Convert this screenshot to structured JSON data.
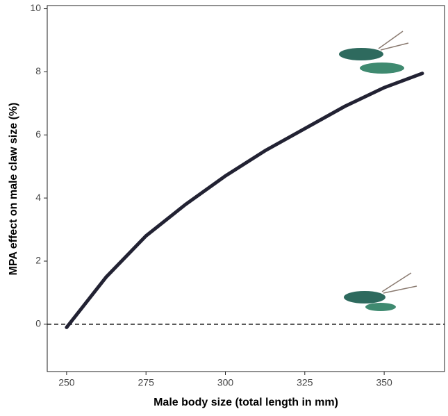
{
  "chart_data": {
    "type": "line",
    "x_label": "Male body size (total length in mm)",
    "y_label": "MPA effect on male claw size (%)",
    "x": [
      250,
      262.5,
      275,
      287.5,
      300,
      312.5,
      325,
      337.5,
      350,
      362
    ],
    "series": [
      {
        "color": "#222233",
        "values": [
          -0.1,
          1.5,
          2.8,
          3.8,
          4.7,
          5.5,
          6.2,
          6.9,
          7.5,
          7.95
        ]
      }
    ],
    "reference_line": 0,
    "xlim": [
      243.9,
      369
    ],
    "ylim": [
      -1.5,
      10.1
    ],
    "xticks": [
      250,
      275,
      300,
      325,
      350
    ],
    "yticks": [
      0,
      2,
      4,
      6,
      8,
      10
    ]
  }
}
